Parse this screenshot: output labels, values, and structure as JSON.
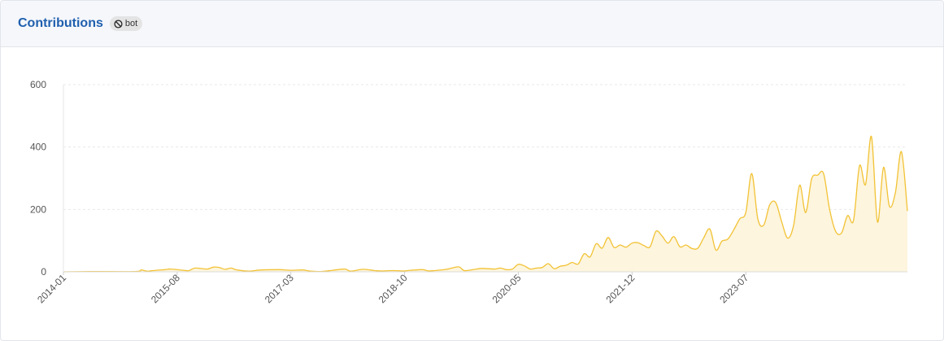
{
  "header": {
    "title": "Contributions",
    "badge_label": "bot",
    "badge_icon": "ban-icon"
  },
  "colors": {
    "line": "#f2c234",
    "fill": "#fdf5dd",
    "title": "#1f5fae",
    "grid": "#e9e9e9"
  },
  "chart_data": {
    "type": "area",
    "title": "",
    "xlabel": "",
    "ylabel": "",
    "ylim": [
      0,
      600
    ],
    "yticks": [
      0,
      200,
      400,
      600
    ],
    "xticks": [
      "2014-01",
      "2015-08",
      "2017-03",
      "2018-10",
      "2020-05",
      "2021-12",
      "2023-07"
    ],
    "grid": true,
    "legend": "none",
    "x_start": "2014-01",
    "x_end": "2024-10",
    "anchors": [
      [
        "2014-01",
        0
      ],
      [
        "2014-06",
        1
      ],
      [
        "2015-01",
        1
      ],
      [
        "2015-02",
        6
      ],
      [
        "2015-03",
        2
      ],
      [
        "2015-04",
        4
      ],
      [
        "2015-06",
        7
      ],
      [
        "2015-07",
        9
      ],
      [
        "2015-09",
        5
      ],
      [
        "2015-10",
        4
      ],
      [
        "2015-11",
        12
      ],
      [
        "2016-01",
        9
      ],
      [
        "2016-02",
        15
      ],
      [
        "2016-03",
        14
      ],
      [
        "2016-04",
        8
      ],
      [
        "2016-05",
        12
      ],
      [
        "2016-06",
        6
      ],
      [
        "2016-08",
        2
      ],
      [
        "2016-10",
        6
      ],
      [
        "2017-01",
        7
      ],
      [
        "2017-03",
        5
      ],
      [
        "2017-05",
        6
      ],
      [
        "2017-06",
        3
      ],
      [
        "2017-08",
        1
      ],
      [
        "2017-10",
        5
      ],
      [
        "2017-12",
        9
      ],
      [
        "2018-01",
        2
      ],
      [
        "2018-03",
        8
      ],
      [
        "2018-05",
        4
      ],
      [
        "2018-06",
        3
      ],
      [
        "2018-08",
        4
      ],
      [
        "2018-10",
        3
      ],
      [
        "2018-11",
        5
      ],
      [
        "2019-01",
        7
      ],
      [
        "2019-02",
        3
      ],
      [
        "2019-03",
        4
      ],
      [
        "2019-05",
        8
      ],
      [
        "2019-07",
        16
      ],
      [
        "2019-08",
        4
      ],
      [
        "2019-10",
        9
      ],
      [
        "2019-11",
        11
      ],
      [
        "2020-01",
        9
      ],
      [
        "2020-02",
        12
      ],
      [
        "2020-03",
        7
      ],
      [
        "2020-04",
        9
      ],
      [
        "2020-05",
        24
      ],
      [
        "2020-06",
        19
      ],
      [
        "2020-07",
        9
      ],
      [
        "2020-08",
        12
      ],
      [
        "2020-09",
        14
      ],
      [
        "2020-10",
        26
      ],
      [
        "2020-11",
        10
      ],
      [
        "2020-12",
        18
      ],
      [
        "2021-01",
        21
      ],
      [
        "2021-02",
        30
      ],
      [
        "2021-03",
        25
      ],
      [
        "2021-04",
        58
      ],
      [
        "2021-05",
        48
      ],
      [
        "2021-06",
        90
      ],
      [
        "2021-07",
        76
      ],
      [
        "2021-08",
        110
      ],
      [
        "2021-09",
        78
      ],
      [
        "2021-10",
        86
      ],
      [
        "2021-11",
        79
      ],
      [
        "2021-12",
        92
      ],
      [
        "2022-01",
        93
      ],
      [
        "2022-02",
        84
      ],
      [
        "2022-03",
        80
      ],
      [
        "2022-04",
        130
      ],
      [
        "2022-05",
        115
      ],
      [
        "2022-06",
        92
      ],
      [
        "2022-07",
        113
      ],
      [
        "2022-08",
        80
      ],
      [
        "2022-09",
        86
      ],
      [
        "2022-10",
        75
      ],
      [
        "2022-11",
        76
      ],
      [
        "2022-12",
        110
      ],
      [
        "2023-01",
        137
      ],
      [
        "2023-02",
        70
      ],
      [
        "2023-03",
        98
      ],
      [
        "2023-04",
        105
      ],
      [
        "2023-05",
        135
      ],
      [
        "2023-06",
        170
      ],
      [
        "2023-07",
        190
      ],
      [
        "2023-08",
        315
      ],
      [
        "2023-09",
        170
      ],
      [
        "2023-10",
        150
      ],
      [
        "2023-11",
        215
      ],
      [
        "2023-12",
        222
      ],
      [
        "2024-01",
        160
      ],
      [
        "2024-02",
        108
      ],
      [
        "2024-03",
        150
      ],
      [
        "2024-04",
        278
      ],
      [
        "2024-05",
        190
      ],
      [
        "2024-06",
        298
      ],
      [
        "2024-07",
        310
      ],
      [
        "2024-08",
        315
      ],
      [
        "2024-09",
        200
      ],
      [
        "2024-10",
        130
      ]
    ],
    "anchors_tail": [
      [
        "2024-11",
        125
      ],
      [
        "2024-12",
        180
      ],
      [
        "2025-01",
        165
      ],
      [
        "2025-02",
        340
      ],
      [
        "2025-03",
        280
      ],
      [
        "2025-04",
        433
      ],
      [
        "2025-05",
        160
      ],
      [
        "2025-06",
        335
      ],
      [
        "2025-07",
        210
      ],
      [
        "2025-08",
        255
      ],
      [
        "2025-09",
        385
      ],
      [
        "2025-10",
        195
      ]
    ]
  }
}
